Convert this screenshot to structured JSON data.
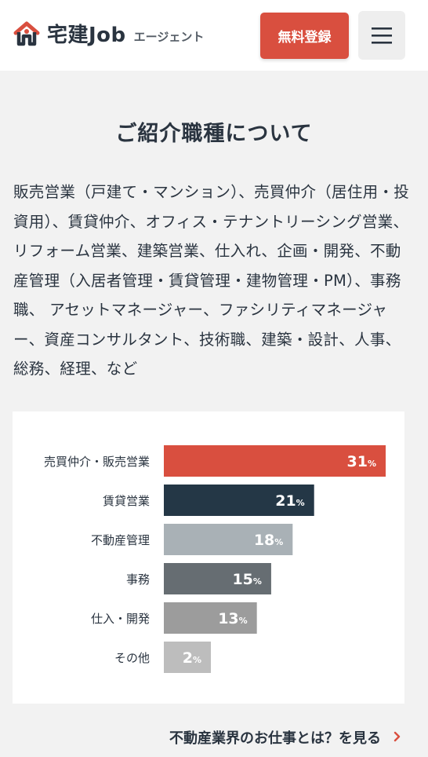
{
  "header": {
    "logo_text": "宅建Job",
    "logo_sub": "エージェント",
    "signup_label": "無料登録"
  },
  "section": {
    "title": "ご紹介職種について",
    "job_list": "販売営業（戸建て・マンション）、売買仲介（居住用・投資用）、賃貸仲介、オフィス・テナントリーシング営業、 リフォーム営業、建築営業、仕入れ、企画・開発、不動産管理（入居者管理・賃貸管理・建物管理・PM）、事務職、 アセットマネージャー、ファシリティマネージャー、資産コンサルタント、技術職、建築・設計、人事、総務、経理、など"
  },
  "chart_data": {
    "type": "bar",
    "orientation": "horizontal",
    "categories": [
      "売買仲介・販売営業",
      "賃貸営業",
      "不動産管理",
      "事務",
      "仕入・開発",
      "その他"
    ],
    "values": [
      31,
      21,
      18,
      15,
      13,
      2
    ],
    "value_suffix": "%",
    "colors": [
      "#d94f3f",
      "#243746",
      "#a9b1b6",
      "#666d72",
      "#9c9c9c",
      "#bdbdbd"
    ]
  },
  "more_link": {
    "label": "不動産業界のお仕事とは？を見る"
  }
}
